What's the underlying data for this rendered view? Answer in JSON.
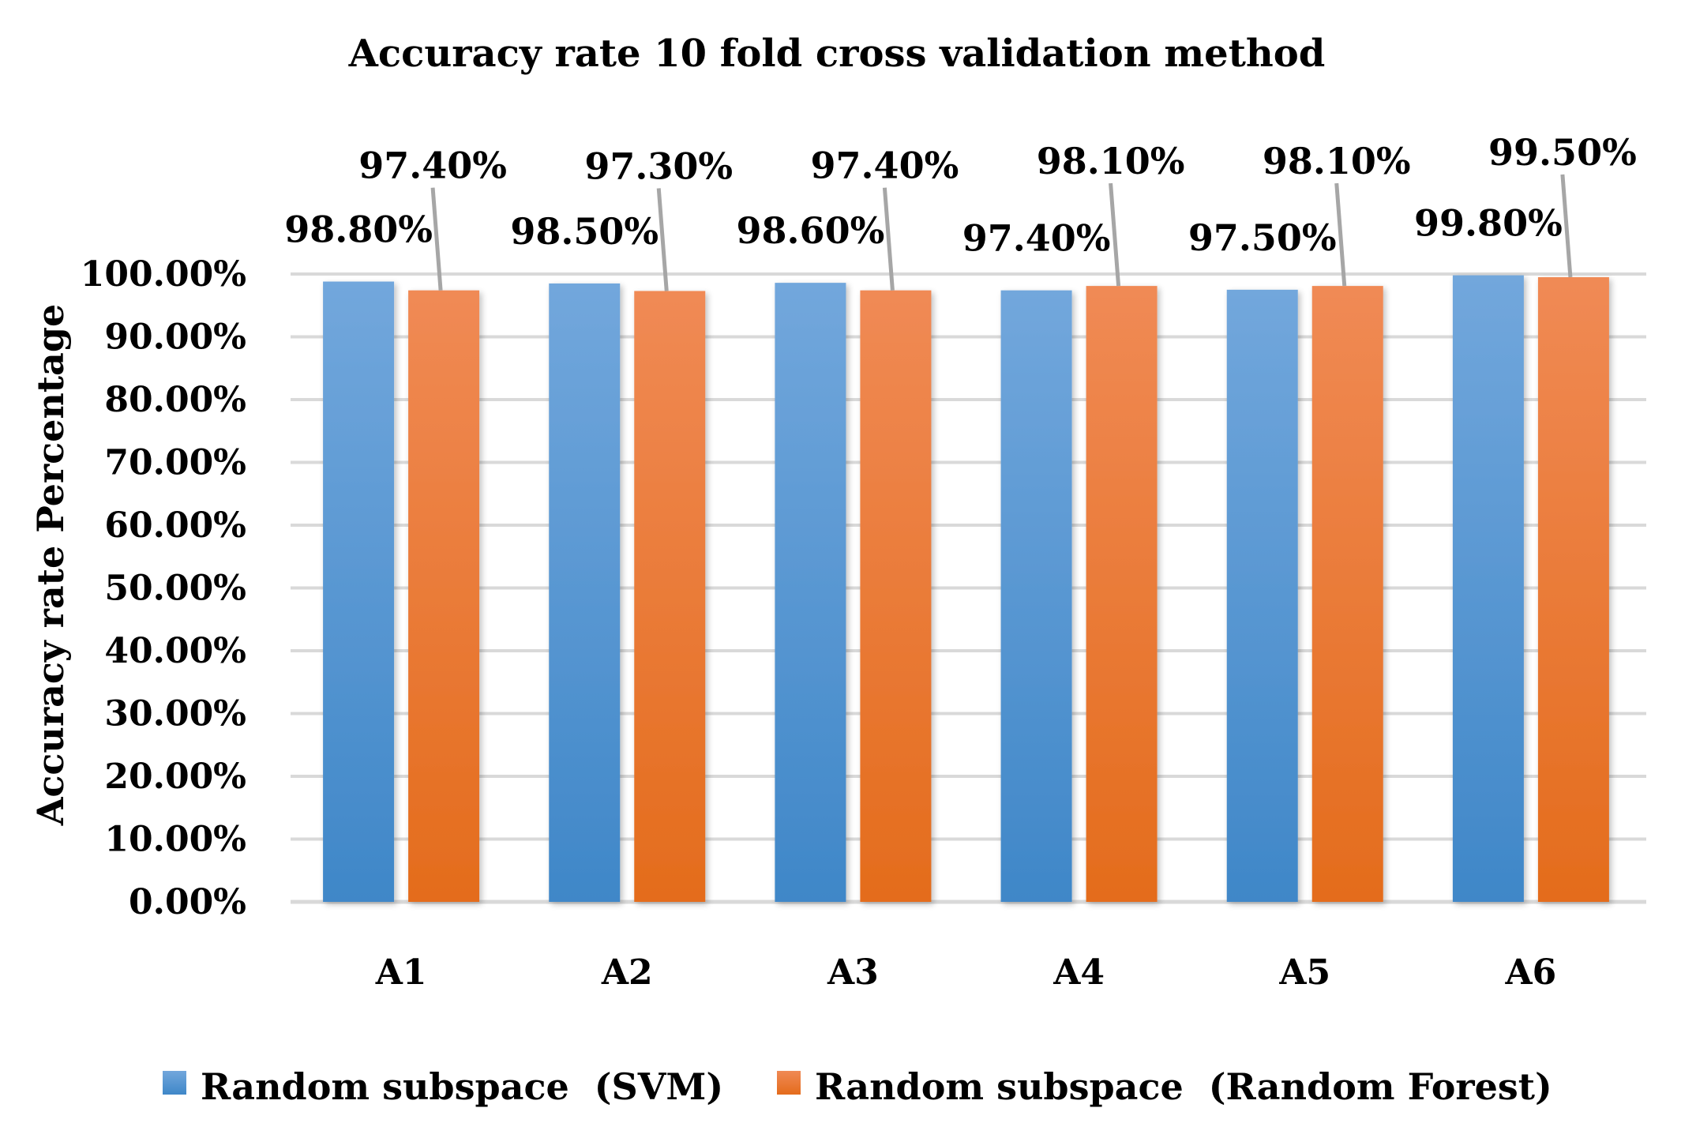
{
  "chart_data": {
    "type": "bar",
    "title": "Accuracy rate 10 fold cross validation method",
    "xlabel": "",
    "ylabel": "Accuracy rate Percentage",
    "categories": [
      "A1",
      "A2",
      "A3",
      "A4",
      "A5",
      "A6"
    ],
    "series": [
      {
        "name": "Random subspace  (SVM)",
        "values": [
          98.8,
          98.5,
          98.6,
          97.4,
          97.5,
          99.8
        ],
        "labels": [
          "98.80%",
          "98.50%",
          "98.60%",
          "97.40%",
          "97.50%",
          "99.80%"
        ],
        "color": "#5b9bd5"
      },
      {
        "name": "Random subspace  (Random Forest)",
        "values": [
          97.4,
          97.3,
          97.4,
          98.1,
          98.1,
          99.5
        ],
        "labels": [
          "97.40%",
          "97.30%",
          "97.40%",
          "98.10%",
          "98.10%",
          "99.50%"
        ],
        "color": "#ed7d31"
      }
    ],
    "ylim": [
      0,
      100
    ],
    "yticks": [
      0,
      10,
      20,
      30,
      40,
      50,
      60,
      70,
      80,
      90,
      100
    ],
    "ytick_labels": [
      "0.00%",
      "10.00%",
      "20.00%",
      "30.00%",
      "40.00%",
      "50.00%",
      "60.00%",
      "70.00%",
      "80.00%",
      "90.00%",
      "100.00%"
    ],
    "grid": true,
    "legend_position": "bottom"
  }
}
